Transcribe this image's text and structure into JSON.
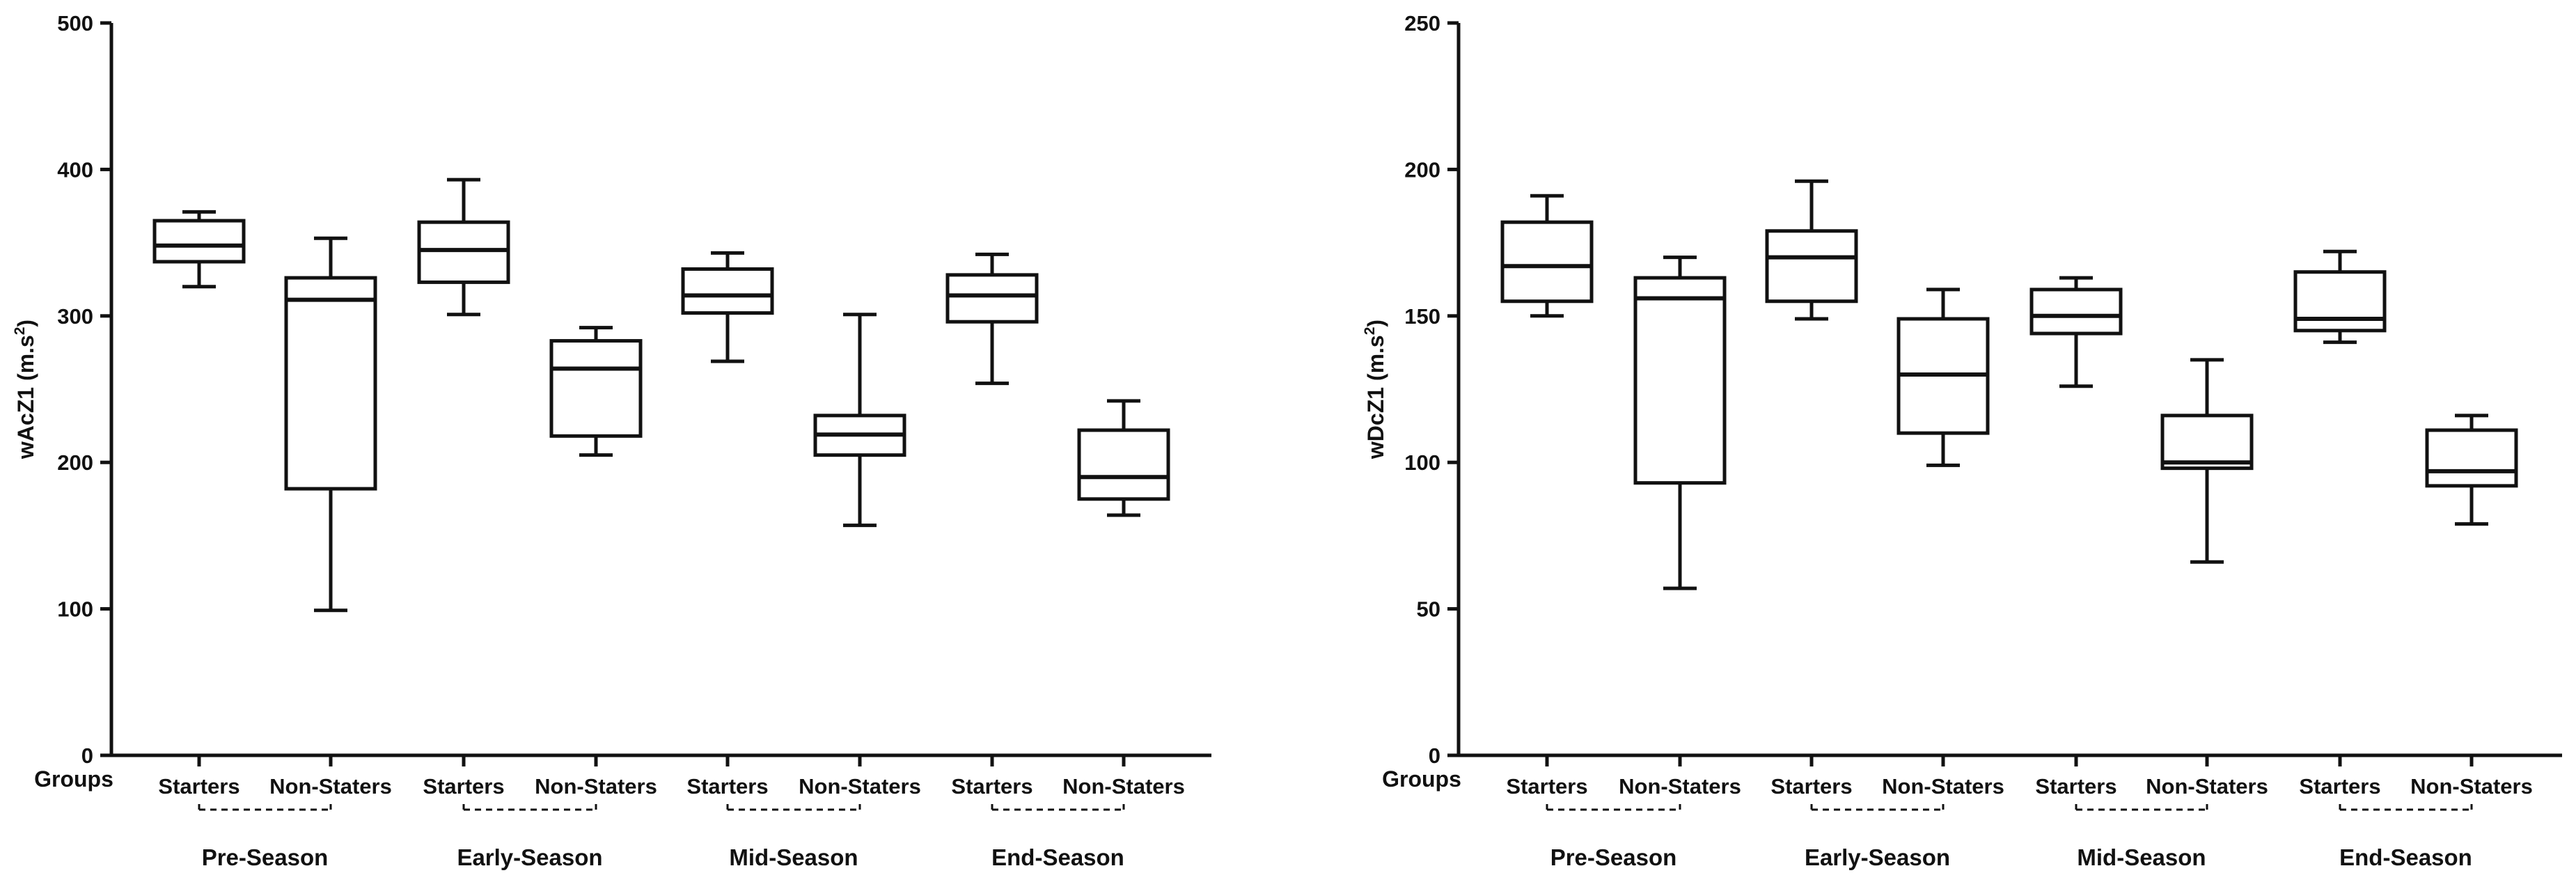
{
  "chart_data": [
    {
      "type": "box",
      "ylabel": "wAcZ1 (m.s",
      "ylabel_sup": "2",
      "ylabel_suffix": ")",
      "ylim": [
        0,
        500
      ],
      "yticks": [
        0,
        100,
        200,
        300,
        400,
        500
      ],
      "group_axis_label": "Groups",
      "categories": [
        "Starters",
        "Non-Staters",
        "Starters",
        "Non-Staters",
        "Starters",
        "Non-Staters",
        "Starters",
        "Non-Staters"
      ],
      "phases": [
        "Pre-Season",
        "Early-Season",
        "Mid-Season",
        "End-Season"
      ],
      "boxes": [
        {
          "min": 320,
          "q1": 337,
          "median": 348,
          "q3": 365,
          "max": 371
        },
        {
          "min": 99,
          "q1": 182,
          "median": 311,
          "q3": 326,
          "max": 353
        },
        {
          "min": 301,
          "q1": 323,
          "median": 345,
          "q3": 364,
          "max": 393
        },
        {
          "min": 205,
          "q1": 218,
          "median": 264,
          "q3": 283,
          "max": 292
        },
        {
          "min": 269,
          "q1": 302,
          "median": 314,
          "q3": 332,
          "max": 343
        },
        {
          "min": 157,
          "q1": 205,
          "median": 219,
          "q3": 232,
          "max": 301
        },
        {
          "min": 254,
          "q1": 296,
          "median": 314,
          "q3": 328,
          "max": 342
        },
        {
          "min": 164,
          "q1": 175,
          "median": 190,
          "q3": 222,
          "max": 242
        }
      ]
    },
    {
      "type": "box",
      "ylabel": "wDcZ1 (m.s",
      "ylabel_sup": "2",
      "ylabel_suffix": ")",
      "ylim": [
        0,
        250
      ],
      "yticks": [
        0,
        50,
        100,
        150,
        200,
        250
      ],
      "group_axis_label": "Groups",
      "categories": [
        "Starters",
        "Non-Staters",
        "Starters",
        "Non-Staters",
        "Starters",
        "Non-Staters",
        "Starters",
        "Non-Staters"
      ],
      "phases": [
        "Pre-Season",
        "Early-Season",
        "Mid-Season",
        "End-Season"
      ],
      "boxes": [
        {
          "min": 150,
          "q1": 155,
          "median": 167,
          "q3": 182,
          "max": 191
        },
        {
          "min": 57,
          "q1": 93,
          "median": 156,
          "q3": 163,
          "max": 170
        },
        {
          "min": 149,
          "q1": 155,
          "median": 170,
          "q3": 179,
          "max": 196
        },
        {
          "min": 99,
          "q1": 110,
          "median": 130,
          "q3": 149,
          "max": 159
        },
        {
          "min": 126,
          "q1": 144,
          "median": 150,
          "q3": 159,
          "max": 163
        },
        {
          "min": 66,
          "q1": 98,
          "median": 100,
          "q3": 116,
          "max": 135
        },
        {
          "min": 141,
          "q1": 145,
          "median": 149,
          "q3": 165,
          "max": 172
        },
        {
          "min": 79,
          "q1": 92,
          "median": 97,
          "q3": 111,
          "max": 116
        }
      ]
    }
  ]
}
